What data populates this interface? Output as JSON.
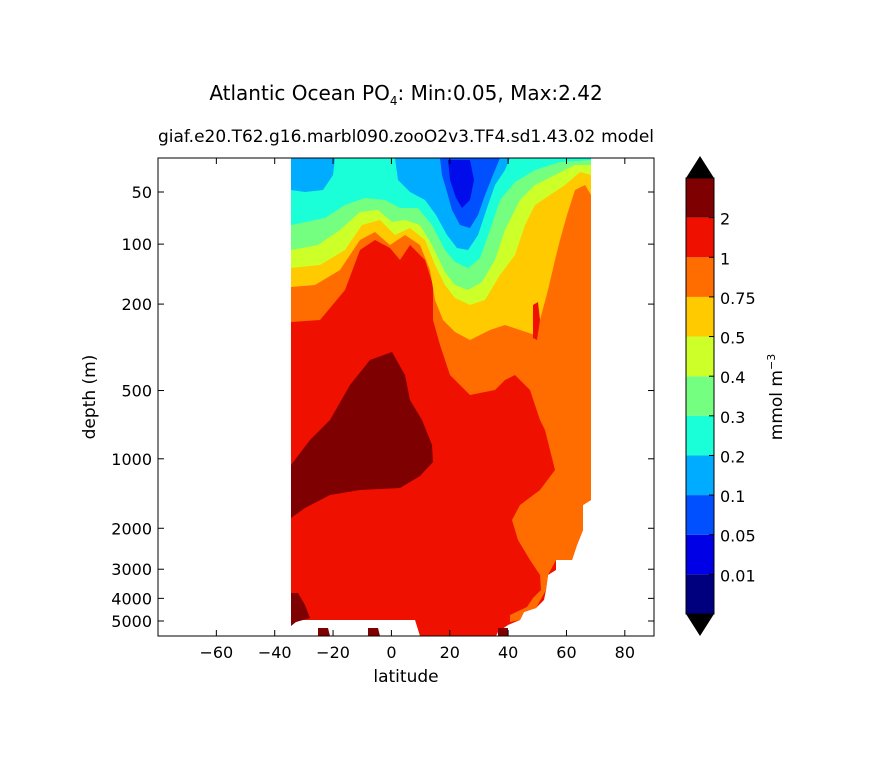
{
  "chart_data": {
    "type": "heatmap",
    "title_main": "Atlantic Ocean PO",
    "title_sub": "4",
    "title_rest": ": Min:0.05, Max:2.42",
    "subtitle_left": "giaf.e20.T62.g16.marbl090.zooO2v3.TF4.sd1.43.02",
    "subtitle_right": "model",
    "xlabel": "latitude",
    "ylabel": "depth (m)",
    "xlim": [
      -80,
      90
    ],
    "x_ticks": [
      -60,
      -40,
      -20,
      0,
      20,
      40,
      60,
      80
    ],
    "x_tick_labels": [
      "−60",
      "−40",
      "−20",
      "0",
      "20",
      "40",
      "60",
      "80"
    ],
    "y_ticks": [
      50,
      100,
      200,
      500,
      1000,
      2000,
      3000,
      4000,
      5000
    ],
    "y_tick_labels": [
      "50",
      "100",
      "200",
      "500",
      "1000",
      "2000",
      "3000",
      "4000",
      "5000"
    ],
    "colorbar": {
      "label": "mmol m",
      "label_exp": "−3",
      "levels": [
        0.01,
        0.05,
        0.1,
        0.2,
        0.3,
        0.4,
        0.5,
        0.75,
        1,
        2
      ],
      "level_labels": [
        "0.01",
        "0.05",
        "0.1",
        "0.2",
        "0.3",
        "0.4",
        "0.5",
        "0.75",
        "1",
        "2"
      ],
      "colors": [
        "#00007f",
        "#0000e6",
        "#0050ff",
        "#00acff",
        "#1affd7",
        "#74ff81",
        "#cdff29",
        "#ffca00",
        "#ff6d00",
        "#f01000",
        "#7f0000"
      ],
      "extend": "both"
    }
  }
}
